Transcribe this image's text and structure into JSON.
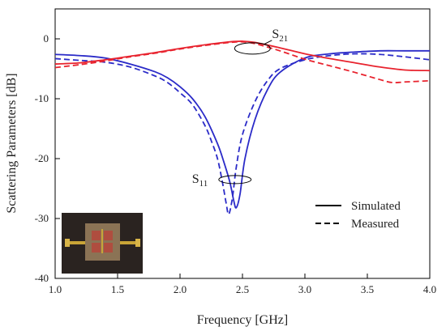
{
  "chart_data": {
    "type": "line",
    "xlabel": "Frequency [GHz]",
    "ylabel": "Scattering Parameters [dB]",
    "xlim": [
      1.0,
      4.0
    ],
    "ylim": [
      -40,
      5
    ],
    "x_ticks": [
      "1.0",
      "1.5",
      "2.0",
      "2.5",
      "3.0",
      "3.5",
      "4.0"
    ],
    "y_ticks": [
      "0",
      "-10",
      "-20",
      "-30",
      "-40"
    ],
    "grid": false,
    "legend_position": "bottom-right",
    "legend": [
      {
        "label": "Simulated",
        "style": "solid"
      },
      {
        "label": "Measured",
        "style": "dashed"
      }
    ],
    "annotations": [
      {
        "base": "S",
        "sub": "21",
        "points_to": "S21 curves",
        "at": [
          2.58,
          -1.6
        ]
      },
      {
        "base": "S",
        "sub": "11",
        "points_to": "S11 curves",
        "at": [
          2.44,
          -23.5
        ]
      }
    ],
    "inset": "photo of fabricated device",
    "colors": {
      "s11": "#2b2bc8",
      "s21": "#e8232e",
      "axis": "#000000"
    },
    "series": [
      {
        "name": "S11 Simulated",
        "color": "#2b2bc8",
        "style": "solid",
        "x": [
          1.0,
          1.2,
          1.4,
          1.6,
          1.8,
          1.9,
          2.0,
          2.1,
          2.2,
          2.3,
          2.35,
          2.4,
          2.43,
          2.45,
          2.48,
          2.52,
          2.6,
          2.7,
          2.8,
          3.0,
          3.2,
          3.4,
          3.6,
          3.8,
          4.0
        ],
        "y": [
          -2.6,
          -2.8,
          -3.2,
          -4.2,
          -5.5,
          -6.5,
          -8.0,
          -10.0,
          -13.0,
          -17.5,
          -20.5,
          -24.0,
          -27.0,
          -28.2,
          -26.0,
          -20.0,
          -13.5,
          -8.5,
          -5.6,
          -3.2,
          -2.5,
          -2.2,
          -2.0,
          -2.0,
          -2.0
        ]
      },
      {
        "name": "S11 Measured",
        "color": "#2b2bc8",
        "style": "dashed",
        "x": [
          1.0,
          1.2,
          1.4,
          1.6,
          1.8,
          1.9,
          2.0,
          2.1,
          2.2,
          2.25,
          2.3,
          2.34,
          2.37,
          2.39,
          2.42,
          2.45,
          2.5,
          2.6,
          2.7,
          2.8,
          3.0,
          3.2,
          3.4,
          3.6,
          3.8,
          4.0
        ],
        "y": [
          -3.3,
          -3.6,
          -3.9,
          -4.7,
          -6.2,
          -7.3,
          -9.0,
          -11.0,
          -14.5,
          -17.0,
          -20.0,
          -24.0,
          -27.5,
          -29.3,
          -26.5,
          -21.5,
          -16.0,
          -10.5,
          -7.0,
          -5.0,
          -3.5,
          -2.8,
          -2.5,
          -2.6,
          -3.0,
          -3.5
        ]
      },
      {
        "name": "S21 Simulated",
        "color": "#e8232e",
        "style": "solid",
        "x": [
          1.0,
          1.2,
          1.4,
          1.6,
          1.8,
          2.0,
          2.2,
          2.4,
          2.5,
          2.6,
          2.8,
          3.0,
          3.2,
          3.4,
          3.6,
          3.8,
          4.0
        ],
        "y": [
          -4.2,
          -4.0,
          -3.5,
          -2.9,
          -2.3,
          -1.6,
          -1.0,
          -0.5,
          -0.4,
          -0.6,
          -1.5,
          -2.5,
          -3.3,
          -4.0,
          -4.7,
          -5.2,
          -5.3
        ]
      },
      {
        "name": "S21 Measured",
        "color": "#e8232e",
        "style": "dashed",
        "x": [
          1.0,
          1.2,
          1.4,
          1.6,
          1.8,
          2.0,
          2.2,
          2.4,
          2.5,
          2.6,
          2.8,
          3.0,
          3.2,
          3.4,
          3.6,
          3.7,
          3.8,
          4.0
        ],
        "y": [
          -4.8,
          -4.3,
          -3.7,
          -3.0,
          -2.4,
          -1.7,
          -1.1,
          -0.6,
          -0.5,
          -0.8,
          -2.0,
          -3.4,
          -4.5,
          -5.6,
          -6.8,
          -7.3,
          -7.2,
          -7.0
        ]
      }
    ]
  }
}
